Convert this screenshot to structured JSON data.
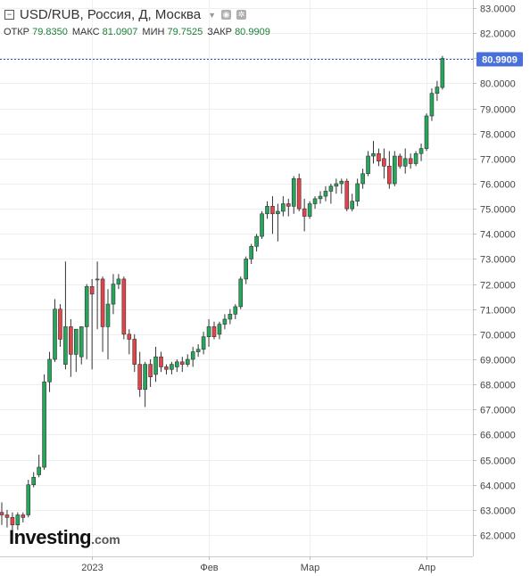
{
  "header": {
    "title": "USD/RUB, Россия, Д, Москва",
    "open_label": "ОТКР",
    "open_value": "79.8350",
    "high_label": "МАКС",
    "high_value": "81.0907",
    "low_label": "МИН",
    "low_value": "79.7525",
    "close_label": "ЗАКР",
    "close_value": "80.9909"
  },
  "logo": {
    "main": "Investing",
    "suffix": ".com"
  },
  "colors": {
    "up": "#26a65b",
    "down": "#e5434a",
    "last_price_bg": "#4a6fd8",
    "price_line": "#2f4fb0"
  },
  "chart_data": {
    "type": "candlestick",
    "ylim": [
      61.4,
      83.2
    ],
    "y_ticks": [
      "62.0000",
      "63.0000",
      "64.0000",
      "65.0000",
      "66.0000",
      "67.0000",
      "68.0000",
      "69.0000",
      "70.0000",
      "71.0000",
      "72.0000",
      "73.0000",
      "74.0000",
      "75.0000",
      "76.0000",
      "77.0000",
      "78.0000",
      "79.0000",
      "80.0000",
      "81.0000",
      "82.0000",
      "83.0000"
    ],
    "x_ticks": [
      {
        "label": "2023",
        "index": 17
      },
      {
        "label": "Фев",
        "index": 39
      },
      {
        "label": "Мар",
        "index": 58
      },
      {
        "label": "Апр",
        "index": 80
      }
    ],
    "last_price": "80.9909",
    "last_value": 80.9909,
    "candles": [
      {
        "o": 62.9,
        "h": 63.3,
        "l": 62.4,
        "c": 62.8
      },
      {
        "o": 62.8,
        "h": 63.0,
        "l": 62.3,
        "c": 62.7
      },
      {
        "o": 62.7,
        "h": 62.9,
        "l": 61.9,
        "c": 62.4
      },
      {
        "o": 62.4,
        "h": 62.9,
        "l": 62.2,
        "c": 62.8
      },
      {
        "o": 62.8,
        "h": 62.9,
        "l": 62.5,
        "c": 62.7
      },
      {
        "o": 62.8,
        "h": 64.2,
        "l": 62.7,
        "c": 64.0
      },
      {
        "o": 64.0,
        "h": 64.5,
        "l": 63.9,
        "c": 64.3
      },
      {
        "o": 64.4,
        "h": 65.2,
        "l": 64.3,
        "c": 64.7
      },
      {
        "o": 64.7,
        "h": 68.4,
        "l": 64.6,
        "c": 68.1
      },
      {
        "o": 68.1,
        "h": 69.3,
        "l": 67.7,
        "c": 69.0
      },
      {
        "o": 69.0,
        "h": 71.4,
        "l": 68.9,
        "c": 71.0
      },
      {
        "o": 71.0,
        "h": 71.2,
        "l": 69.5,
        "c": 69.8
      },
      {
        "o": 68.8,
        "h": 72.9,
        "l": 68.6,
        "c": 70.3
      },
      {
        "o": 70.3,
        "h": 70.6,
        "l": 68.3,
        "c": 69.2
      },
      {
        "o": 69.2,
        "h": 70.2,
        "l": 68.5,
        "c": 70.2
      },
      {
        "o": 69.1,
        "h": 70.2,
        "l": 68.8,
        "c": 70.3
      },
      {
        "o": 70.3,
        "h": 72.0,
        "l": 69.0,
        "c": 71.9
      },
      {
        "o": 71.9,
        "h": 72.2,
        "l": 68.6,
        "c": 71.6
      },
      {
        "o": 72.2,
        "h": 72.9,
        "l": 70.2,
        "c": 72.2
      },
      {
        "o": 72.2,
        "h": 72.3,
        "l": 69.3,
        "c": 70.3
      },
      {
        "o": 70.3,
        "h": 71.8,
        "l": 69.0,
        "c": 71.2
      },
      {
        "o": 71.2,
        "h": 72.4,
        "l": 70.8,
        "c": 72.0
      },
      {
        "o": 72.0,
        "h": 72.4,
        "l": 71.8,
        "c": 72.2
      },
      {
        "o": 72.2,
        "h": 72.3,
        "l": 69.8,
        "c": 70.0
      },
      {
        "o": 70.0,
        "h": 70.2,
        "l": 69.2,
        "c": 69.8
      },
      {
        "o": 69.8,
        "h": 70.0,
        "l": 68.5,
        "c": 68.8
      },
      {
        "o": 68.8,
        "h": 69.3,
        "l": 67.5,
        "c": 67.8
      },
      {
        "o": 67.8,
        "h": 68.9,
        "l": 67.1,
        "c": 68.8
      },
      {
        "o": 68.8,
        "h": 69.0,
        "l": 67.9,
        "c": 68.3
      },
      {
        "o": 68.4,
        "h": 69.5,
        "l": 68.1,
        "c": 69.1
      },
      {
        "o": 69.1,
        "h": 69.3,
        "l": 68.5,
        "c": 68.7
      },
      {
        "o": 68.7,
        "h": 68.8,
        "l": 68.4,
        "c": 68.6
      },
      {
        "o": 68.6,
        "h": 68.9,
        "l": 68.4,
        "c": 68.8
      },
      {
        "o": 68.7,
        "h": 69.0,
        "l": 68.5,
        "c": 68.9
      },
      {
        "o": 68.9,
        "h": 69.1,
        "l": 68.5,
        "c": 68.8
      },
      {
        "o": 68.8,
        "h": 69.2,
        "l": 68.7,
        "c": 69.0
      },
      {
        "o": 69.0,
        "h": 69.5,
        "l": 68.7,
        "c": 69.3
      },
      {
        "o": 69.3,
        "h": 69.6,
        "l": 69.1,
        "c": 69.4
      },
      {
        "o": 69.4,
        "h": 70.1,
        "l": 69.2,
        "c": 69.9
      },
      {
        "o": 69.9,
        "h": 70.6,
        "l": 69.5,
        "c": 70.3
      },
      {
        "o": 70.3,
        "h": 70.5,
        "l": 69.8,
        "c": 69.9
      },
      {
        "o": 70.0,
        "h": 70.5,
        "l": 69.8,
        "c": 70.4
      },
      {
        "o": 70.4,
        "h": 70.8,
        "l": 70.2,
        "c": 70.6
      },
      {
        "o": 70.6,
        "h": 71.0,
        "l": 70.4,
        "c": 70.8
      },
      {
        "o": 70.8,
        "h": 71.2,
        "l": 70.6,
        "c": 71.1
      },
      {
        "o": 71.1,
        "h": 72.3,
        "l": 71.0,
        "c": 72.2
      },
      {
        "o": 72.2,
        "h": 73.1,
        "l": 72.0,
        "c": 73.0
      },
      {
        "o": 73.0,
        "h": 73.6,
        "l": 72.8,
        "c": 73.5
      },
      {
        "o": 73.5,
        "h": 74.0,
        "l": 73.3,
        "c": 73.9
      },
      {
        "o": 73.9,
        "h": 74.9,
        "l": 73.8,
        "c": 74.8
      },
      {
        "o": 74.8,
        "h": 75.3,
        "l": 74.6,
        "c": 75.1
      },
      {
        "o": 75.1,
        "h": 75.5,
        "l": 74.0,
        "c": 74.8
      },
      {
        "o": 74.8,
        "h": 75.2,
        "l": 73.7,
        "c": 74.9
      },
      {
        "o": 74.9,
        "h": 75.5,
        "l": 74.7,
        "c": 75.2
      },
      {
        "o": 75.2,
        "h": 75.4,
        "l": 74.7,
        "c": 75.1
      },
      {
        "o": 75.1,
        "h": 76.3,
        "l": 74.8,
        "c": 76.2
      },
      {
        "o": 76.2,
        "h": 76.4,
        "l": 74.9,
        "c": 75.0
      },
      {
        "o": 75.0,
        "h": 75.4,
        "l": 74.1,
        "c": 74.7
      },
      {
        "o": 74.7,
        "h": 75.3,
        "l": 74.6,
        "c": 75.2
      },
      {
        "o": 75.2,
        "h": 75.5,
        "l": 75.0,
        "c": 75.4
      },
      {
        "o": 75.4,
        "h": 75.7,
        "l": 75.2,
        "c": 75.5
      },
      {
        "o": 75.5,
        "h": 75.9,
        "l": 75.3,
        "c": 75.7
      },
      {
        "o": 75.7,
        "h": 76.0,
        "l": 75.2,
        "c": 75.9
      },
      {
        "o": 75.9,
        "h": 76.2,
        "l": 75.6,
        "c": 76.0
      },
      {
        "o": 76.0,
        "h": 76.2,
        "l": 75.6,
        "c": 76.1
      },
      {
        "o": 76.1,
        "h": 76.2,
        "l": 74.9,
        "c": 75.0
      },
      {
        "o": 75.0,
        "h": 75.6,
        "l": 74.9,
        "c": 75.3
      },
      {
        "o": 75.3,
        "h": 76.2,
        "l": 75.1,
        "c": 76.0
      },
      {
        "o": 76.0,
        "h": 76.6,
        "l": 75.8,
        "c": 76.4
      },
      {
        "o": 76.4,
        "h": 77.3,
        "l": 76.3,
        "c": 77.1
      },
      {
        "o": 77.1,
        "h": 77.7,
        "l": 76.8,
        "c": 77.2
      },
      {
        "o": 77.2,
        "h": 77.4,
        "l": 76.7,
        "c": 76.9
      },
      {
        "o": 77.0,
        "h": 77.4,
        "l": 76.2,
        "c": 76.7
      },
      {
        "o": 76.7,
        "h": 77.3,
        "l": 75.8,
        "c": 76.0
      },
      {
        "o": 76.0,
        "h": 77.3,
        "l": 75.9,
        "c": 77.1
      },
      {
        "o": 77.1,
        "h": 77.2,
        "l": 76.6,
        "c": 76.7
      },
      {
        "o": 76.7,
        "h": 77.4,
        "l": 76.4,
        "c": 77.0
      },
      {
        "o": 77.0,
        "h": 77.2,
        "l": 76.6,
        "c": 76.8
      },
      {
        "o": 76.8,
        "h": 77.3,
        "l": 76.7,
        "c": 77.2
      },
      {
        "o": 77.2,
        "h": 77.6,
        "l": 76.9,
        "c": 77.4
      },
      {
        "o": 77.4,
        "h": 78.8,
        "l": 77.3,
        "c": 78.7
      },
      {
        "o": 78.7,
        "h": 79.8,
        "l": 78.5,
        "c": 79.6
      },
      {
        "o": 79.6,
        "h": 80.1,
        "l": 79.3,
        "c": 79.85
      },
      {
        "o": 79.835,
        "h": 81.0907,
        "l": 79.7525,
        "c": 80.9909
      }
    ]
  }
}
